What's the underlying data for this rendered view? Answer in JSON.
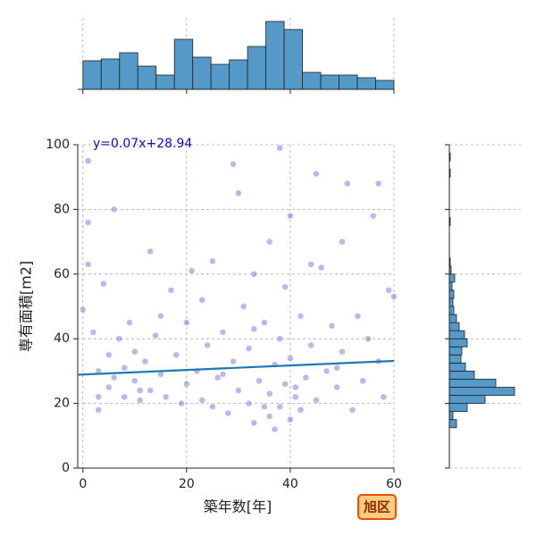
{
  "chart_data": {
    "type": "jointplot",
    "x_label": "築年数[年]",
    "y_label": "専有面積[m2]",
    "annotation": "y=0.07x+28.94",
    "badge": "旭区",
    "grid": true,
    "xlim": [
      -1,
      60
    ],
    "ylim": [
      0,
      100
    ],
    "xticks": [
      0,
      20,
      40,
      60
    ],
    "yticks": [
      0,
      20,
      40,
      60,
      80,
      100
    ],
    "scatter": {
      "color": "#1a1ab0",
      "x": [
        0,
        1,
        1,
        1,
        2,
        3,
        3,
        4,
        5,
        5,
        6,
        6,
        7,
        8,
        8,
        9,
        10,
        10,
        11,
        12,
        13,
        13,
        14,
        15,
        16,
        17,
        18,
        19,
        20,
        20,
        21,
        22,
        23,
        24,
        25,
        25,
        26,
        27,
        28,
        29,
        29,
        30,
        30,
        31,
        32,
        32,
        33,
        33,
        34,
        35,
        35,
        36,
        36,
        37,
        37,
        38,
        38,
        38,
        39,
        39,
        40,
        40,
        40,
        41,
        42,
        42,
        43,
        44,
        44,
        45,
        45,
        46,
        47,
        48,
        49,
        50,
        50,
        51,
        52,
        53,
        54,
        55,
        56,
        57,
        57,
        58,
        59,
        60,
        3,
        15,
        27,
        33,
        41,
        49,
        23,
        11,
        36
      ],
      "y": [
        49,
        95,
        63,
        76,
        42,
        22,
        30,
        57,
        25,
        35,
        80,
        28,
        40,
        22,
        31,
        45,
        27,
        36,
        21,
        33,
        67,
        24,
        41,
        29,
        22,
        55,
        35,
        20,
        26,
        45,
        61,
        30,
        21,
        38,
        64,
        19,
        28,
        42,
        17,
        94,
        33,
        85,
        24,
        50,
        20,
        37,
        14,
        60,
        27,
        45,
        19,
        70,
        23,
        32,
        12,
        99,
        40,
        19,
        26,
        56,
        78,
        15,
        34,
        22,
        47,
        18,
        28,
        63,
        38,
        91,
        21,
        62,
        30,
        44,
        25,
        70,
        36,
        88,
        18,
        47,
        27,
        40,
        78,
        88,
        33,
        22,
        55,
        53,
        18,
        47,
        29,
        43,
        25,
        31,
        52,
        24,
        16
      ]
    },
    "regression": {
      "slope": 0.07,
      "intercept": 28.94,
      "color": "#1f77b4"
    },
    "top_hist": {
      "color": "#5599c8",
      "ylim": [
        0,
        80
      ],
      "bins": [
        0,
        3.53,
        7.06,
        10.59,
        14.12,
        17.65,
        21.18,
        24.71,
        28.24,
        31.76,
        35.29,
        38.82,
        42.35,
        45.88,
        49.41,
        52.94,
        56.47,
        60
      ],
      "counts": [
        32,
        34,
        41,
        26,
        16,
        56,
        36,
        28,
        33,
        48,
        76,
        67,
        19,
        16,
        16,
        13,
        10
      ]
    },
    "right_hist": {
      "color": "#5599c8",
      "xlim": [
        0,
        80
      ],
      "bins": [
        12.5,
        15,
        17.5,
        20,
        22.5,
        25,
        27.5,
        30,
        32.5,
        35,
        37.5,
        40,
        42.5,
        45,
        47.5,
        50,
        52.5,
        55,
        57.5,
        60,
        62.5,
        65,
        67.5,
        70,
        72.5,
        75,
        77.5,
        80,
        82.5,
        85,
        87.5,
        90,
        92.5,
        95,
        97.5,
        100
      ],
      "counts": [
        8,
        4,
        20,
        40,
        73,
        52,
        28,
        18,
        13,
        14,
        20,
        17,
        11,
        8,
        5,
        4,
        5,
        3,
        6,
        2,
        1,
        0,
        0,
        0,
        0,
        1,
        0,
        0,
        0,
        0,
        0,
        1,
        0,
        1,
        0
      ]
    }
  }
}
